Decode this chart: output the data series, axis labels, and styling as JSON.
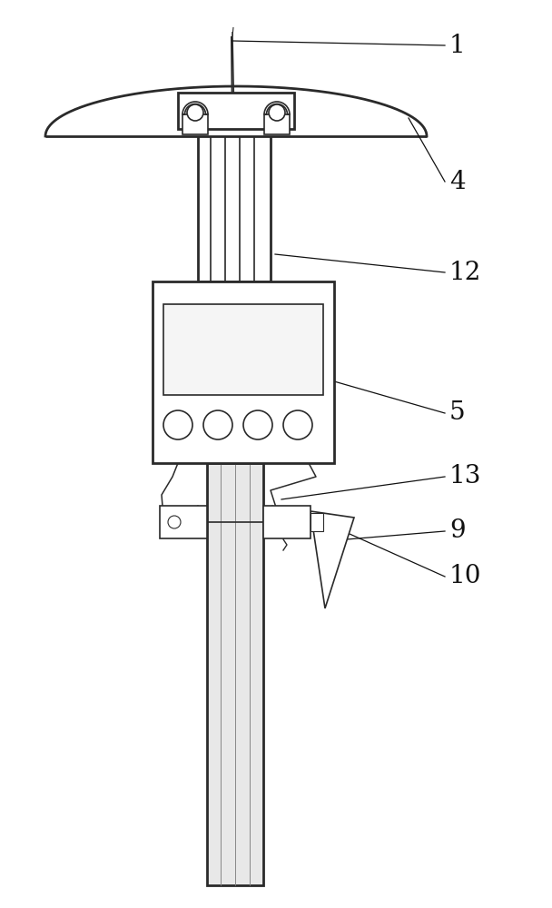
{
  "bg_color": "#ffffff",
  "line_color": "#2a2a2a",
  "label_color": "#111111",
  "figsize": [
    6.08,
    10.0
  ],
  "dpi": 100
}
